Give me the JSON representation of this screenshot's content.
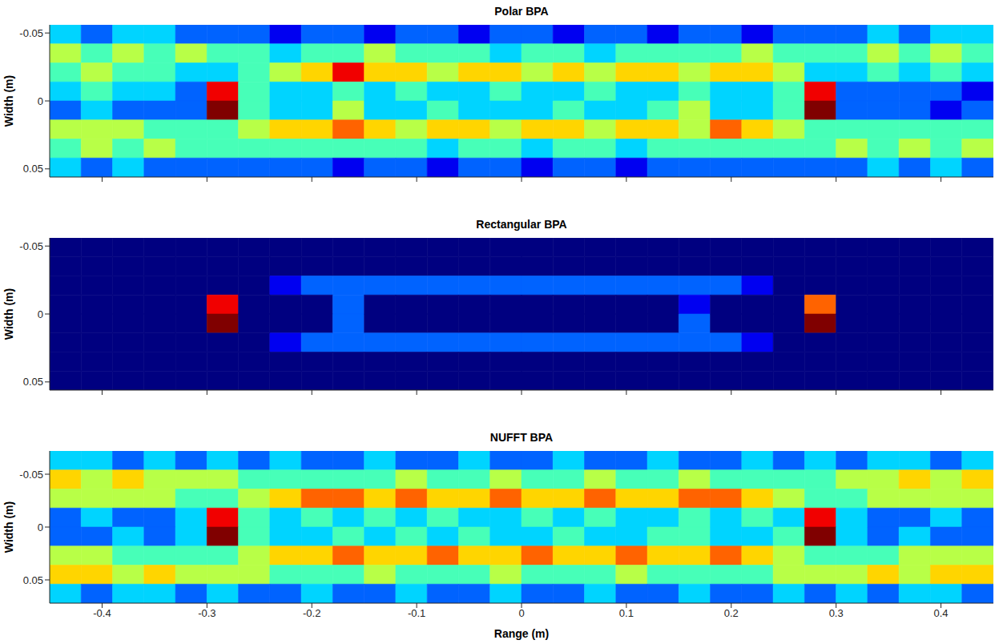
{
  "chart_data": [
    {
      "type": "heatmap",
      "title": "Polar BPA",
      "y_label": "Width (m)",
      "tick_labels": "y",
      "xlim": [
        -0.45,
        0.45
      ],
      "xticks": [
        -0.4,
        -0.3,
        -0.2,
        -0.1,
        0,
        0.1,
        0.2,
        0.3,
        0.4
      ],
      "ylim": [
        -0.056,
        0.056
      ],
      "yticks": [
        -0.05,
        0,
        0.05
      ],
      "x_edges": [
        -0.45,
        -0.42,
        -0.39,
        -0.36,
        -0.33,
        -0.3,
        -0.27,
        -0.24,
        -0.21,
        -0.18,
        -0.15,
        -0.12,
        -0.09,
        -0.06,
        -0.03,
        0,
        0.03,
        0.06,
        0.09,
        0.12,
        0.15,
        0.18,
        0.21,
        0.24,
        0.27,
        0.3,
        0.33,
        0.36,
        0.39,
        0.42,
        0.45
      ],
      "y_edges": [
        -0.056,
        -0.042,
        -0.028,
        -0.014,
        0,
        0.014,
        0.028,
        0.042,
        0.056
      ],
      "zlim": [
        0,
        9
      ],
      "cells": [
        [
          3,
          2,
          3,
          3,
          2,
          2,
          2,
          1,
          2,
          2,
          1,
          2,
          2,
          1,
          2,
          2,
          1,
          2,
          2,
          1,
          2,
          2,
          1,
          2,
          2,
          2,
          3,
          2,
          3,
          3
        ],
        [
          5,
          4,
          5,
          4,
          5,
          4,
          4,
          3,
          4,
          4,
          5,
          4,
          4,
          4,
          3,
          4,
          4,
          3,
          4,
          4,
          4,
          4,
          5,
          4,
          4,
          4,
          5,
          4,
          5,
          4
        ],
        [
          4,
          5,
          4,
          4,
          3,
          3,
          4,
          5,
          6,
          8,
          6,
          6,
          5,
          6,
          6,
          5,
          6,
          5,
          6,
          6,
          5,
          6,
          6,
          5,
          3,
          3,
          4,
          3,
          4,
          3
        ],
        [
          3,
          4,
          3,
          3,
          2,
          8,
          4,
          3,
          3,
          4,
          3,
          4,
          3,
          3,
          4,
          3,
          3,
          4,
          3,
          3,
          4,
          3,
          3,
          4,
          8,
          2,
          2,
          2,
          2,
          1
        ],
        [
          2,
          3,
          2,
          2,
          2,
          9,
          4,
          3,
          3,
          5,
          3,
          3,
          4,
          3,
          3,
          3,
          4,
          3,
          3,
          4,
          5,
          3,
          3,
          4,
          9,
          2,
          2,
          2,
          1,
          2
        ],
        [
          5,
          5,
          5,
          4,
          4,
          4,
          5,
          6,
          6,
          7,
          6,
          5,
          6,
          6,
          5,
          6,
          6,
          5,
          6,
          6,
          5,
          7,
          6,
          5,
          4,
          4,
          4,
          4,
          4,
          4
        ],
        [
          4,
          5,
          4,
          5,
          4,
          4,
          4,
          4,
          4,
          4,
          4,
          4,
          3,
          4,
          4,
          3,
          4,
          4,
          3,
          4,
          4,
          4,
          4,
          4,
          4,
          5,
          4,
          5,
          4,
          5
        ],
        [
          3,
          2,
          3,
          2,
          2,
          2,
          2,
          2,
          2,
          1,
          2,
          2,
          1,
          2,
          2,
          1,
          2,
          2,
          1,
          2,
          2,
          2,
          2,
          2,
          2,
          2,
          3,
          2,
          3,
          2
        ]
      ]
    },
    {
      "type": "heatmap",
      "title": "Rectangular BPA",
      "y_label": "Width (m)",
      "tick_labels": "y",
      "xlim": [
        -0.45,
        0.45
      ],
      "xticks": [
        -0.4,
        -0.3,
        -0.2,
        -0.1,
        0,
        0.1,
        0.2,
        0.3,
        0.4
      ],
      "ylim": [
        -0.056,
        0.056
      ],
      "yticks": [
        -0.05,
        0,
        0.05
      ],
      "x_edges": [
        -0.45,
        -0.42,
        -0.39,
        -0.36,
        -0.33,
        -0.3,
        -0.27,
        -0.24,
        -0.21,
        -0.18,
        -0.15,
        -0.12,
        -0.09,
        -0.06,
        -0.03,
        0,
        0.03,
        0.06,
        0.09,
        0.12,
        0.15,
        0.18,
        0.21,
        0.24,
        0.27,
        0.3,
        0.33,
        0.36,
        0.39,
        0.42,
        0.45
      ],
      "y_edges": [
        -0.056,
        -0.042,
        -0.028,
        -0.014,
        0,
        0.014,
        0.028,
        0.042,
        0.056
      ],
      "zlim": [
        0,
        9
      ],
      "cells": [
        [
          0,
          0,
          0,
          0,
          0,
          0,
          0,
          0,
          0,
          0,
          0,
          0,
          0,
          0,
          0,
          0,
          0,
          0,
          0,
          0,
          0,
          0,
          0,
          0,
          0,
          0,
          0,
          0,
          0,
          0
        ],
        [
          0,
          0,
          0,
          0,
          0,
          0,
          0,
          0,
          0,
          0,
          0,
          0,
          0,
          0,
          0,
          0,
          0,
          0,
          0,
          0,
          0,
          0,
          0,
          0,
          0,
          0,
          0,
          0,
          0,
          0
        ],
        [
          0,
          0,
          0,
          0,
          0,
          0,
          0,
          1,
          2,
          2,
          2,
          2,
          2,
          2,
          2,
          2,
          2,
          2,
          2,
          2,
          2,
          2,
          1,
          0,
          0,
          0,
          0,
          0,
          0,
          0
        ],
        [
          0,
          0,
          0,
          0,
          0,
          8,
          0,
          0,
          0,
          2,
          0,
          0,
          0,
          0,
          0,
          0,
          0,
          0,
          0,
          0,
          1,
          0,
          0,
          0,
          7,
          0,
          0,
          0,
          0,
          0
        ],
        [
          0,
          0,
          0,
          0,
          0,
          9,
          0,
          0,
          0,
          2,
          0,
          0,
          0,
          0,
          0,
          0,
          0,
          0,
          0,
          0,
          2,
          0,
          0,
          0,
          9,
          0,
          0,
          0,
          0,
          0
        ],
        [
          0,
          0,
          0,
          0,
          0,
          0,
          0,
          1,
          2,
          2,
          2,
          2,
          2,
          2,
          2,
          2,
          2,
          2,
          2,
          2,
          2,
          2,
          1,
          0,
          0,
          0,
          0,
          0,
          0,
          0
        ],
        [
          0,
          0,
          0,
          0,
          0,
          0,
          0,
          0,
          0,
          0,
          0,
          0,
          0,
          0,
          0,
          0,
          0,
          0,
          0,
          0,
          0,
          0,
          0,
          0,
          0,
          0,
          0,
          0,
          0,
          0
        ],
        [
          0,
          0,
          0,
          0,
          0,
          0,
          0,
          0,
          0,
          0,
          0,
          0,
          0,
          0,
          0,
          0,
          0,
          0,
          0,
          0,
          0,
          0,
          0,
          0,
          0,
          0,
          0,
          0,
          0,
          0
        ]
      ]
    },
    {
      "type": "heatmap",
      "title": "NUFFT BPA",
      "x_label": "Range (m)",
      "y_label": "Width (m)",
      "xlim": [
        -0.45,
        0.45
      ],
      "xticks": [
        -0.4,
        -0.3,
        -0.2,
        -0.1,
        0,
        0.1,
        0.2,
        0.3,
        0.4
      ],
      "ylim": [
        -0.072,
        0.072
      ],
      "yticks": [
        -0.05,
        0,
        0.05
      ],
      "x_edges": [
        -0.45,
        -0.42,
        -0.39,
        -0.36,
        -0.33,
        -0.3,
        -0.27,
        -0.24,
        -0.21,
        -0.18,
        -0.15,
        -0.12,
        -0.09,
        -0.06,
        -0.03,
        0,
        0.03,
        0.06,
        0.09,
        0.12,
        0.15,
        0.18,
        0.21,
        0.24,
        0.27,
        0.3,
        0.33,
        0.36,
        0.39,
        0.42,
        0.45
      ],
      "y_edges": [
        -0.072,
        -0.054,
        -0.036,
        -0.018,
        0,
        0.018,
        0.036,
        0.054,
        0.072
      ],
      "zlim": [
        0,
        9
      ],
      "cells": [
        [
          3,
          3,
          2,
          3,
          2,
          3,
          2,
          3,
          2,
          2,
          3,
          2,
          2,
          3,
          2,
          2,
          3,
          2,
          2,
          3,
          2,
          2,
          3,
          2,
          3,
          2,
          3,
          3,
          2,
          3
        ],
        [
          6,
          5,
          6,
          5,
          5,
          5,
          4,
          4,
          4,
          4,
          4,
          5,
          4,
          4,
          5,
          4,
          4,
          5,
          4,
          4,
          5,
          4,
          4,
          4,
          4,
          5,
          5,
          6,
          5,
          6
        ],
        [
          5,
          5,
          5,
          5,
          4,
          4,
          5,
          6,
          7,
          7,
          6,
          7,
          6,
          6,
          7,
          6,
          6,
          7,
          6,
          6,
          7,
          7,
          6,
          5,
          4,
          4,
          5,
          5,
          5,
          5
        ],
        [
          2,
          3,
          2,
          2,
          3,
          8,
          4,
          3,
          4,
          3,
          4,
          3,
          4,
          3,
          3,
          4,
          3,
          4,
          3,
          3,
          4,
          3,
          4,
          3,
          8,
          3,
          2,
          2,
          3,
          2
        ],
        [
          2,
          2,
          3,
          2,
          3,
          9,
          4,
          3,
          3,
          4,
          3,
          4,
          3,
          4,
          3,
          3,
          4,
          3,
          3,
          4,
          4,
          3,
          3,
          4,
          9,
          3,
          2,
          3,
          2,
          2
        ],
        [
          5,
          5,
          4,
          4,
          4,
          4,
          5,
          6,
          6,
          7,
          6,
          6,
          7,
          6,
          6,
          7,
          6,
          6,
          7,
          6,
          6,
          7,
          6,
          5,
          4,
          4,
          4,
          5,
          5,
          5
        ],
        [
          6,
          6,
          5,
          6,
          5,
          5,
          5,
          4,
          4,
          4,
          5,
          4,
          4,
          4,
          5,
          4,
          4,
          4,
          5,
          4,
          4,
          4,
          4,
          5,
          5,
          5,
          6,
          5,
          6,
          6
        ],
        [
          3,
          2,
          3,
          3,
          2,
          3,
          2,
          2,
          3,
          2,
          2,
          3,
          2,
          2,
          3,
          2,
          2,
          3,
          2,
          2,
          3,
          2,
          2,
          3,
          2,
          3,
          2,
          3,
          3,
          2
        ]
      ]
    }
  ]
}
